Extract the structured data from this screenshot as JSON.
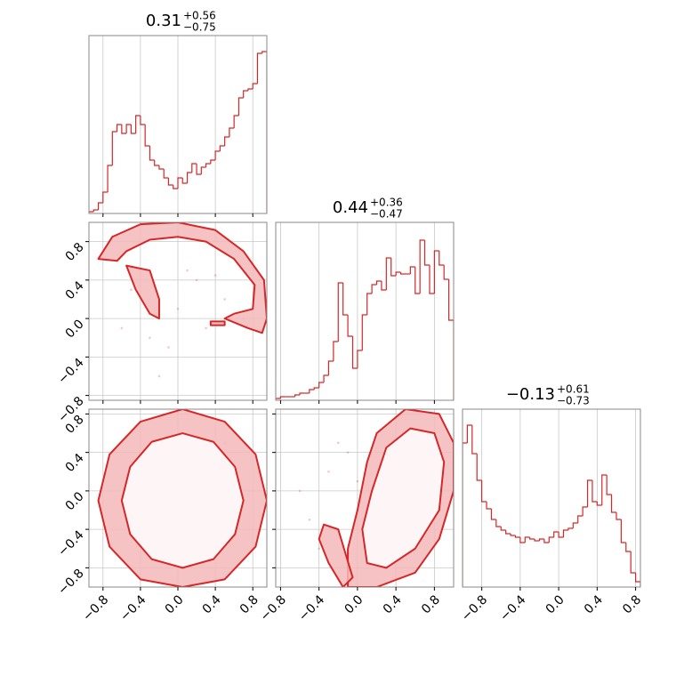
{
  "chart_data": [
    {
      "type": "histogram",
      "title": "0.31",
      "title_upper": "+0.56",
      "title_lower": "−0.75",
      "color": "#d62728",
      "grid": true,
      "xlim": [
        -0.95,
        0.95
      ],
      "ylim": [
        0,
        100
      ],
      "xticks": [
        {
          "value": -0.8,
          "label": "−0.8"
        },
        {
          "value": -0.4,
          "label": "−0.4"
        },
        {
          "value": 0,
          "label": "0.0"
        },
        0.4,
        0.8
      ],
      "bins": [
        -0.95,
        -0.9,
        -0.85,
        -0.8,
        -0.75,
        -0.7,
        -0.65,
        -0.6,
        -0.55,
        -0.5,
        -0.45,
        -0.4,
        -0.35,
        -0.3,
        -0.25,
        -0.2,
        -0.15,
        -0.1,
        -0.05,
        0,
        0.05,
        0.1,
        0.15,
        0.2,
        0.25,
        0.3,
        0.35,
        0.4,
        0.45,
        0.5,
        0.55,
        0.6,
        0.65,
        0.7,
        0.75,
        0.8,
        0.85,
        0.9,
        0.95
      ],
      "values": [
        1,
        2,
        6,
        12,
        27,
        46,
        50,
        45,
        50,
        45,
        55,
        50,
        38,
        30,
        27,
        25,
        20,
        16,
        14,
        20,
        17,
        23,
        28,
        22,
        26,
        28,
        30,
        35,
        38,
        43,
        48,
        55,
        65,
        69,
        70,
        73,
        90,
        91
      ]
    },
    {
      "type": "contour",
      "color": "#d62728",
      "grid": true,
      "xlim": [
        -0.95,
        0.95
      ],
      "ylim": [
        -0.85,
        1.0
      ],
      "xticks": [
        {
          "value": -0.8,
          "label": "−0.8"
        },
        {
          "value": -0.4,
          "label": "−0.4"
        },
        {
          "value": 0,
          "label": "0.0"
        },
        0.4,
        0.8
      ],
      "yticks": [
        {
          "value": -0.8,
          "label": "−0.8"
        },
        {
          "value": -0.4,
          "label": "−0.4"
        },
        {
          "value": 0,
          "label": "0.0"
        },
        0.4,
        0.8
      ],
      "contours": [
        {
          "fill": "#f4b9ba",
          "x": [
            -0.85,
            -0.7,
            -0.4,
            0.0,
            0.4,
            0.7,
            0.92,
            0.95,
            0.9,
            0.75,
            0.5,
            0.6,
            0.8,
            0.82,
            0.6,
            0.3,
            0.0,
            -0.3,
            -0.55,
            -0.65
          ],
          "y": [
            0.62,
            0.85,
            0.98,
            1.0,
            0.92,
            0.7,
            0.4,
            0.0,
            -0.15,
            -0.1,
            0.0,
            0.05,
            0.1,
            0.35,
            0.62,
            0.8,
            0.85,
            0.82,
            0.7,
            0.6
          ]
        },
        {
          "fill": "#f4b9ba",
          "x": [
            -0.55,
            -0.3,
            -0.2,
            -0.2,
            -0.3,
            -0.45
          ],
          "y": [
            0.55,
            0.5,
            0.2,
            0.0,
            0.05,
            0.3
          ]
        },
        {
          "fill": "#f4b9ba",
          "x": [
            0.35,
            0.5,
            0.5,
            0.35
          ],
          "y": [
            -0.03,
            -0.03,
            -0.07,
            -0.07
          ]
        }
      ],
      "points": {
        "x": [
          -0.5,
          -0.3,
          0.1,
          0.3,
          0.5,
          -0.2,
          0.0,
          0.2,
          0.7,
          -0.6,
          0.4,
          -0.1
        ],
        "y": [
          0.3,
          -0.2,
          0.5,
          -0.1,
          0.2,
          -0.6,
          0.1,
          0.4,
          0.0,
          -0.1,
          0.45,
          -0.3
        ]
      }
    },
    {
      "type": "histogram",
      "title": "0.44",
      "title_upper": "+0.36",
      "title_lower": "−0.47",
      "color": "#d62728",
      "grid": true,
      "xlim": [
        -0.85,
        1.0
      ],
      "ylim": [
        0,
        100
      ],
      "xticks": [
        {
          "value": -0.8,
          "label": "−0.8"
        },
        {
          "value": -0.4,
          "label": "−0.4"
        },
        {
          "value": 0,
          "label": "0.0"
        },
        0.4,
        0.8
      ],
      "bins": [
        -0.85,
        -0.8,
        -0.75,
        -0.7,
        -0.65,
        -0.6,
        -0.55,
        -0.5,
        -0.45,
        -0.4,
        -0.35,
        -0.3,
        -0.25,
        -0.2,
        -0.15,
        -0.1,
        -0.05,
        0,
        0.05,
        0.1,
        0.15,
        0.2,
        0.25,
        0.3,
        0.35,
        0.4,
        0.45,
        0.5,
        0.55,
        0.6,
        0.65,
        0.7,
        0.75,
        0.8,
        0.85,
        0.9,
        0.95,
        1.0
      ],
      "values": [
        1,
        2,
        2,
        2,
        3,
        4,
        4,
        6,
        7,
        10,
        14,
        22,
        33,
        66,
        48,
        36,
        18,
        28,
        48,
        60,
        65,
        67,
        62,
        80,
        70,
        72,
        71,
        71,
        75,
        60,
        90,
        76,
        60,
        84,
        76,
        68,
        45
      ]
    },
    {
      "type": "contour",
      "color": "#d62728",
      "grid": true,
      "xlim": [
        -0.95,
        0.95
      ],
      "ylim": [
        -1.0,
        0.85
      ],
      "xticks": [
        {
          "value": -0.8,
          "label": "−0.8"
        },
        {
          "value": -0.4,
          "label": "−0.4"
        },
        {
          "value": 0,
          "label": "0.0"
        },
        0.4,
        0.8
      ],
      "yticks": [
        {
          "value": -0.8,
          "label": "−0.8"
        },
        {
          "value": -0.4,
          "label": "−0.4"
        },
        {
          "value": 0,
          "label": "0.0"
        },
        0.4,
        0.8
      ],
      "contours": [
        {
          "fill": "#f4b9ba",
          "x": [
            0.95,
            0.83,
            0.5,
            0.05,
            -0.4,
            -0.73,
            -0.85,
            -0.73,
            -0.4,
            0.05,
            0.5,
            0.83
          ],
          "y": [
            -0.1,
            0.38,
            0.72,
            0.85,
            0.72,
            0.38,
            -0.1,
            -0.58,
            -0.92,
            -1.0,
            -0.92,
            -0.58
          ]
        },
        {
          "fill": "#ffffff",
          "x": [
            0.7,
            0.61,
            0.38,
            0.05,
            -0.28,
            -0.51,
            -0.6,
            -0.51,
            -0.28,
            0.05,
            0.38,
            0.61
          ],
          "y": [
            -0.1,
            0.25,
            0.51,
            0.6,
            0.51,
            0.25,
            -0.1,
            -0.45,
            -0.71,
            -0.8,
            -0.71,
            -0.45
          ]
        }
      ],
      "points": {
        "x": [
          -0.3,
          0.2,
          0.4,
          -0.1,
          0.1,
          0.6,
          -0.5,
          0.3,
          -0.2,
          0.0,
          0.5,
          -0.4
        ],
        "y": [
          0.2,
          -0.3,
          0.1,
          -0.5,
          0.4,
          -0.2,
          0.3,
          -0.6,
          0.0,
          -0.1,
          0.5,
          -0.4
        ]
      }
    },
    {
      "type": "contour",
      "color": "#d62728",
      "grid": true,
      "xlim": [
        -0.85,
        1.0
      ],
      "ylim": [
        -1.0,
        0.85
      ],
      "xticks": [
        {
          "value": -0.8,
          "label": "−0.8"
        },
        {
          "value": -0.4,
          "label": "−0.4"
        },
        {
          "value": 0,
          "label": "0.0"
        },
        0.4,
        0.8
      ],
      "yticks": [
        {
          "value": -0.8,
          "label": "−0.8"
        },
        {
          "value": -0.4,
          "label": "−0.4"
        },
        {
          "value": 0,
          "label": "0.0"
        },
        0.4,
        0.8
      ],
      "contours": [
        {
          "fill": "#f4b9ba",
          "x": [
            0.2,
            0.5,
            0.85,
            1.0,
            1.0,
            0.85,
            0.6,
            0.2,
            -0.1,
            -0.1,
            0.0,
            0.1
          ],
          "y": [
            0.6,
            0.85,
            0.8,
            0.5,
            0.0,
            -0.5,
            -0.85,
            -1.0,
            -1.0,
            -0.6,
            -0.2,
            0.3
          ]
        },
        {
          "fill": "#ffffff",
          "x": [
            0.3,
            0.55,
            0.8,
            0.9,
            0.85,
            0.6,
            0.3,
            0.1,
            0.05,
            0.15
          ],
          "y": [
            0.45,
            0.65,
            0.6,
            0.3,
            -0.2,
            -0.6,
            -0.8,
            -0.75,
            -0.4,
            0.0
          ]
        },
        {
          "fill": "#f4b9ba",
          "x": [
            -0.35,
            -0.2,
            -0.05,
            -0.15,
            -0.3,
            -0.4
          ],
          "y": [
            -0.35,
            -0.4,
            -0.9,
            -1.0,
            -0.75,
            -0.5
          ]
        }
      ],
      "points": {
        "x": [
          -0.6,
          -0.5,
          -0.3,
          -0.2,
          0.0,
          0.3,
          0.5,
          0.6,
          -0.4,
          0.2,
          0.4,
          -0.1
        ],
        "y": [
          0.0,
          -0.3,
          0.2,
          0.5,
          0.1,
          0.2,
          0.0,
          -0.3,
          -0.6,
          -0.4,
          0.3,
          0.4
        ]
      }
    },
    {
      "type": "histogram",
      "title": "−0.13",
      "title_upper": "+0.61",
      "title_lower": "−0.73",
      "color": "#d62728",
      "grid": true,
      "xlim": [
        -1.0,
        0.85
      ],
      "ylim": [
        0,
        100
      ],
      "xticks": [
        {
          "value": -0.8,
          "label": "−0.8"
        },
        {
          "value": -0.4,
          "label": "−0.4"
        },
        {
          "value": 0,
          "label": "0.0"
        },
        0.4,
        0.8
      ],
      "bins": [
        -1.0,
        -0.95,
        -0.9,
        -0.85,
        -0.8,
        -0.75,
        -0.7,
        -0.65,
        -0.6,
        -0.55,
        -0.5,
        -0.45,
        -0.4,
        -0.35,
        -0.3,
        -0.25,
        -0.2,
        -0.15,
        -0.1,
        -0.05,
        0,
        0.05,
        0.1,
        0.15,
        0.2,
        0.25,
        0.3,
        0.35,
        0.4,
        0.45,
        0.5,
        0.55,
        0.6,
        0.65,
        0.7,
        0.75,
        0.8,
        0.85
      ],
      "values": [
        81,
        91,
        75,
        60,
        48,
        44,
        38,
        34,
        32,
        30,
        29,
        28,
        25,
        28,
        27,
        26,
        27,
        25,
        28,
        31,
        28,
        32,
        33,
        36,
        40,
        45,
        60,
        48,
        46,
        63,
        52,
        42,
        38,
        25,
        20,
        8,
        3
      ]
    }
  ]
}
